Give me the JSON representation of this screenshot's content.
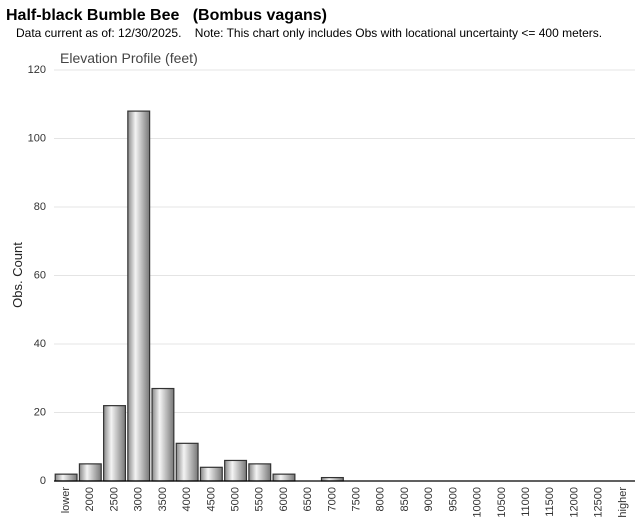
{
  "chart_data": {
    "type": "bar",
    "title": "Half-black Bumble Bee   (Bombus vagans)",
    "subtitle": "Data current as of: 12/30/2025.    Note: This chart only includes Obs with locational uncertainty <= 400 meters.",
    "chart_title": "Elevation Profile (feet)",
    "y_label": "Obs. Count",
    "categories": [
      "lower",
      "2000",
      "2500",
      "3000",
      "3500",
      "4000",
      "4500",
      "5000",
      "5500",
      "6000",
      "6500",
      "7000",
      "7500",
      "8000",
      "8500",
      "9000",
      "9500",
      "10000",
      "10500",
      "11000",
      "11500",
      "12000",
      "12500",
      "higher"
    ],
    "values": [
      2,
      5,
      22,
      108,
      27,
      11,
      4,
      6,
      5,
      2,
      0,
      1,
      0,
      0,
      0,
      0,
      0,
      0,
      0,
      0,
      0,
      0,
      0,
      0
    ],
    "color": "#aaaaaa",
    "ylim": [
      0,
      120
    ],
    "yticks": [
      0,
      20,
      40,
      60,
      80,
      100,
      120
    ],
    "grid": true
  }
}
